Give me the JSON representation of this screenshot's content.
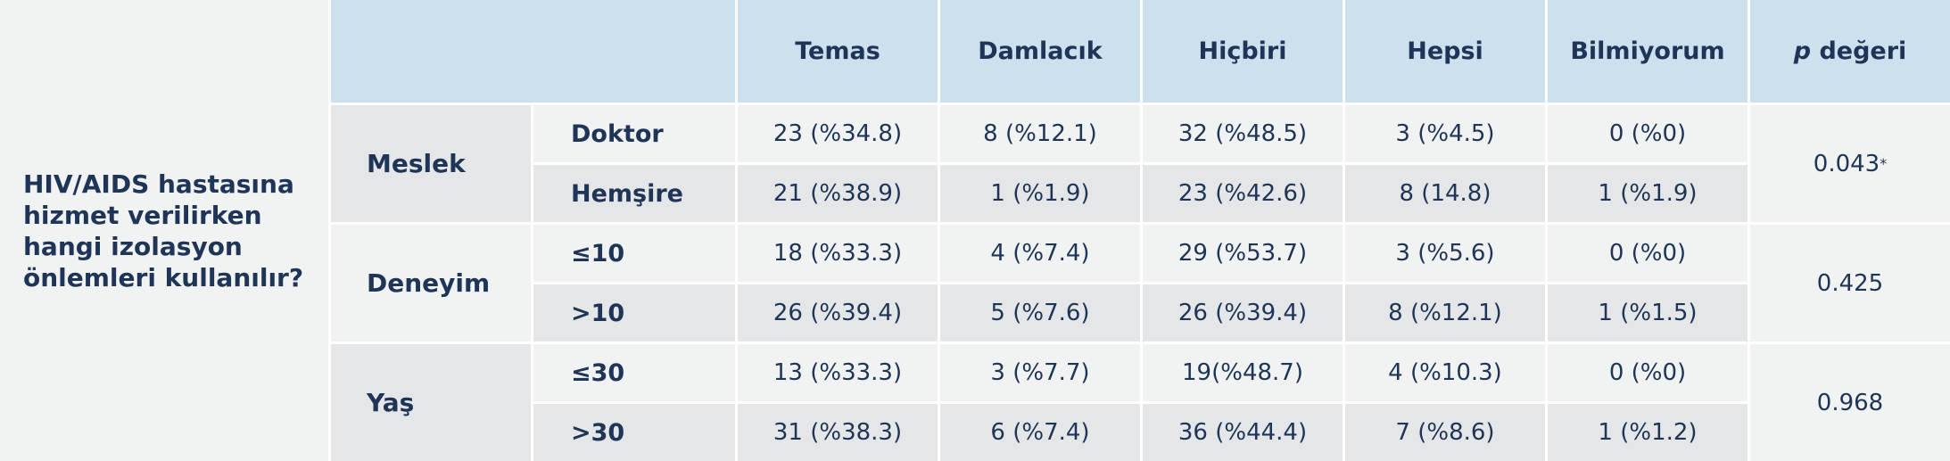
{
  "question": "HIV/AIDS hastasına hizmet verilirken hangi izolasyon önlemleri kullanılır?",
  "header": {
    "columns": [
      "Temas",
      "Damlacık",
      "Hiçbiri",
      "Hepsi",
      "Bilmiyorum"
    ],
    "p_symbol": "p",
    "p_text": "değeri"
  },
  "groups": [
    {
      "label": "Meslek",
      "p_value": "0.043",
      "p_note": "*",
      "rows": [
        {
          "label": "Doktor",
          "cells": [
            "23 (%34.8)",
            "8 (%12.1)",
            "32 (%48.5)",
            "3 (%4.5)",
            "0 (%0)"
          ]
        },
        {
          "label": "Hemşire",
          "cells": [
            "21 (%38.9)",
            "1 (%1.9)",
            "23 (%42.6)",
            "8 (14.8)",
            "1 (%1.9)"
          ]
        }
      ]
    },
    {
      "label": "Deneyim",
      "p_value": "0.425",
      "rows": [
        {
          "label": "≤10",
          "cells": [
            "18 (%33.3)",
            "4 (%7.4)",
            "29 (%53.7)",
            "3 (%5.6)",
            "0 (%0)"
          ]
        },
        {
          "label": ">10",
          "cells": [
            "26 (%39.4)",
            "5 (%7.6)",
            "26 (%39.4)",
            "8 (%12.1)",
            "1 (%1.5)"
          ]
        }
      ]
    },
    {
      "label": "Yaş",
      "p_value": "0.968",
      "rows": [
        {
          "label": "≤30",
          "cells": [
            "13 (%33.3)",
            "3 (%7.7)",
            "19(%48.7)",
            "4 (%10.3)",
            "0 (%0)"
          ]
        },
        {
          "label": ">30",
          "cells": [
            "31 (%38.3)",
            "6 (%7.4)",
            "36 (%44.4)",
            "7 (%8.6)",
            "1 (%1.2)"
          ]
        }
      ]
    }
  ]
}
